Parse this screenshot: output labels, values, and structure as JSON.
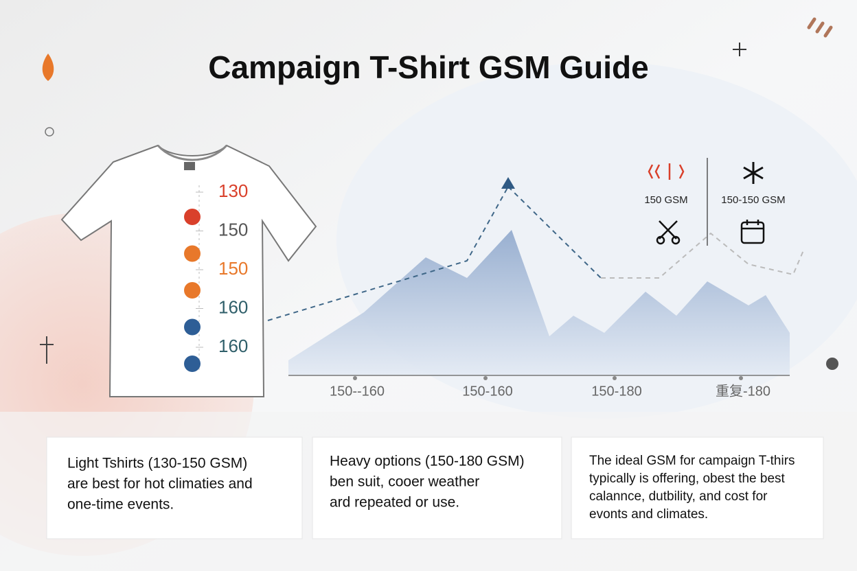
{
  "header": {
    "title": "Campaign T-Shirt GSM Guide"
  },
  "scale": {
    "items": [
      {
        "label": 130,
        "color": "#d9402b"
      },
      {
        "label": 150,
        "color": "#555555"
      },
      {
        "label": 150,
        "color": "#e8782a"
      },
      {
        "label": 160,
        "color": "#2f5f6a"
      },
      {
        "label": 160,
        "color": "#2f5f6a"
      }
    ],
    "dots": [
      "#d9402b",
      "#e8782a",
      "#e8782a",
      "#2e5e96",
      "#2e5e96"
    ]
  },
  "chart": {
    "categories": [
      "150--160",
      "150-160",
      "150-180",
      "重复-180"
    ]
  },
  "legend": {
    "warm": "150 GSM",
    "cold": "150-150 GSM"
  },
  "cards": [
    {
      "lines": [
        "Light Tshirts (130-150 GSM)",
        "are best for hot climaties and",
        "one-time events."
      ]
    },
    {
      "lines": [
        "Heavy options (150-180 GSM)",
        "ben suit, cooer weather",
        "ard repeated or use."
      ]
    },
    {
      "lines": [
        "The ideal GSM for campaign T-thirs",
        "typically is offering, obest the best",
        "calannce, dutbility, and cost for",
        "evonts and climates."
      ]
    }
  ]
}
